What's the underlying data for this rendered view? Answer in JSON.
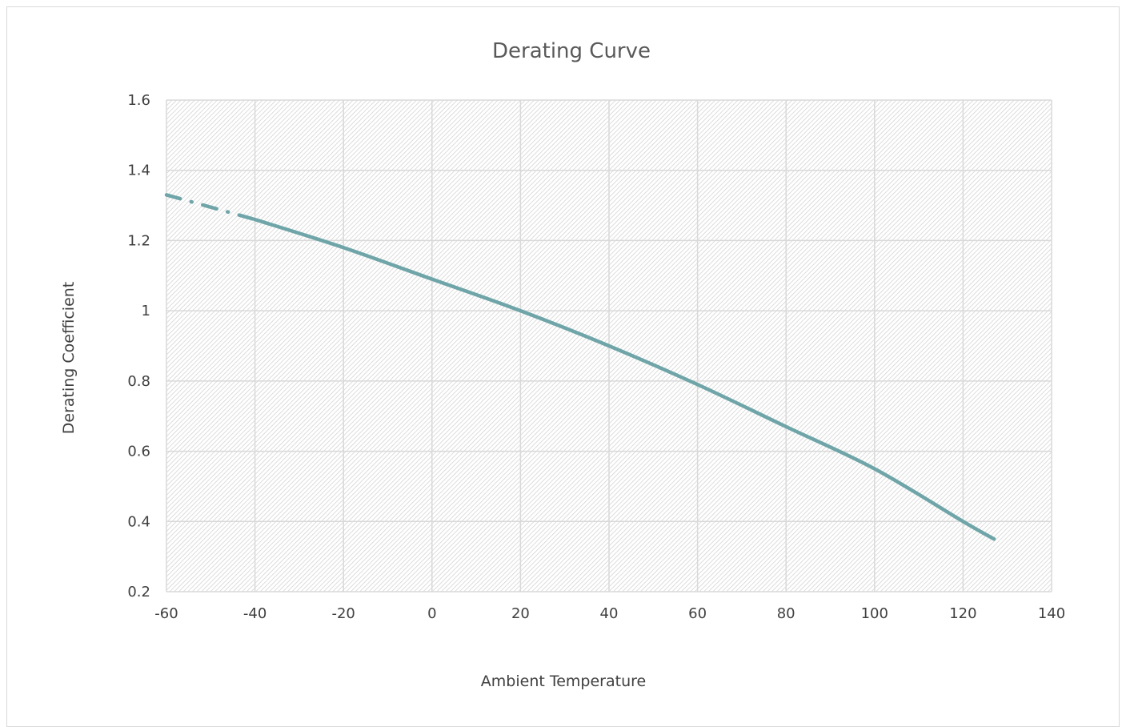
{
  "colors": {
    "series_line": "#6fa5a8",
    "gridline": "#d9d9d9",
    "plot_pattern_stroke": "#d4d4d4",
    "plot_pattern_bg": "#ffffff",
    "title_text": "#595959",
    "axis_text": "#404040"
  },
  "chart_data": {
    "type": "line",
    "title": "Derating Curve",
    "xlabel": "Ambient Temperature",
    "ylabel": "Derating Coefficient",
    "xlim": [
      -60,
      140
    ],
    "ylim": [
      0.2,
      1.6
    ],
    "x_ticks": [
      -60,
      -40,
      -20,
      0,
      20,
      40,
      60,
      80,
      100,
      120,
      140
    ],
    "y_ticks": [
      0.2,
      0.4,
      0.6,
      0.8,
      1,
      1.2,
      1.4,
      1.6
    ],
    "x_tick_labels": [
      "-60",
      "-40",
      "-20",
      "0",
      "20",
      "40",
      "60",
      "80",
      "100",
      "120",
      "140"
    ],
    "y_tick_labels": [
      "0.2",
      "0.4",
      "0.6",
      "0.8",
      "1",
      "1.2",
      "1.4",
      "1.6"
    ],
    "grid": true,
    "legend": "none",
    "series": [
      {
        "style": "dash-dot",
        "x": [
          -60,
          -40
        ],
        "y": [
          1.33,
          1.26
        ]
      },
      {
        "style": "solid",
        "x": [
          -40,
          -20,
          0,
          20,
          40,
          60,
          80,
          100,
          120,
          127
        ],
        "y": [
          1.26,
          1.18,
          1.09,
          1.0,
          0.9,
          0.79,
          0.67,
          0.55,
          0.4,
          0.35
        ]
      }
    ]
  }
}
